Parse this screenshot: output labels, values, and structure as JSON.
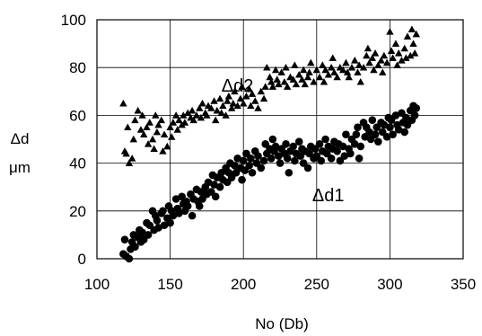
{
  "chart_data": {
    "type": "scatter",
    "title": "",
    "xlabel": "No (Db)",
    "ylabel_line1": "Δd",
    "ylabel_line2": "μm",
    "xlim": [
      100,
      350
    ],
    "ylim": [
      0,
      100
    ],
    "xticks": [
      "100",
      "150",
      "200",
      "250",
      "300",
      "350"
    ],
    "yticks": [
      "0",
      "20",
      "40",
      "60",
      "80",
      "100"
    ],
    "xtick_values": [
      100,
      150,
      200,
      250,
      300,
      350
    ],
    "ytick_values": [
      0,
      20,
      40,
      60,
      80,
      100
    ],
    "grid": true,
    "series_labels": [
      {
        "text": "Δd2",
        "x": 185,
        "y": 70
      },
      {
        "text": "Δd1",
        "x": 247,
        "y": 24
      }
    ],
    "series": [
      {
        "marker": "triangle",
        "color": "#000000",
        "points": [
          [
            118,
            65
          ],
          [
            119,
            45
          ],
          [
            120,
            44
          ],
          [
            121,
            55
          ],
          [
            122,
            40
          ],
          [
            124,
            42
          ],
          [
            125,
            50
          ],
          [
            126,
            58
          ],
          [
            128,
            62
          ],
          [
            130,
            54
          ],
          [
            131,
            60
          ],
          [
            132,
            52
          ],
          [
            134,
            55
          ],
          [
            135,
            48
          ],
          [
            136,
            57
          ],
          [
            138,
            50
          ],
          [
            139,
            46
          ],
          [
            140,
            60
          ],
          [
            141,
            53
          ],
          [
            142,
            56
          ],
          [
            144,
            58
          ],
          [
            145,
            45
          ],
          [
            146,
            52
          ],
          [
            148,
            47
          ],
          [
            150,
            55
          ],
          [
            151,
            51
          ],
          [
            152,
            57
          ],
          [
            154,
            60
          ],
          [
            155,
            54
          ],
          [
            156,
            58
          ],
          [
            158,
            56
          ],
          [
            159,
            60
          ],
          [
            160,
            57
          ],
          [
            162,
            61
          ],
          [
            164,
            59
          ],
          [
            165,
            62
          ],
          [
            166,
            58
          ],
          [
            168,
            60
          ],
          [
            170,
            63
          ],
          [
            171,
            59
          ],
          [
            172,
            65
          ],
          [
            174,
            61
          ],
          [
            175,
            60
          ],
          [
            176,
            64
          ],
          [
            178,
            63
          ],
          [
            180,
            66
          ],
          [
            181,
            58
          ],
          [
            182,
            62
          ],
          [
            184,
            67
          ],
          [
            185,
            61
          ],
          [
            186,
            64
          ],
          [
            188,
            60
          ],
          [
            189,
            66
          ],
          [
            190,
            68
          ],
          [
            192,
            63
          ],
          [
            193,
            65
          ],
          [
            194,
            70
          ],
          [
            196,
            64
          ],
          [
            198,
            67
          ],
          [
            199,
            72
          ],
          [
            200,
            65
          ],
          [
            202,
            68
          ],
          [
            204,
            71
          ],
          [
            205,
            64
          ],
          [
            206,
            69
          ],
          [
            208,
            66
          ],
          [
            210,
            63
          ],
          [
            212,
            70
          ],
          [
            214,
            67
          ],
          [
            215,
            72
          ],
          [
            216,
            80
          ],
          [
            218,
            76
          ],
          [
            219,
            74
          ],
          [
            220,
            72
          ],
          [
            222,
            79
          ],
          [
            223,
            75
          ],
          [
            224,
            73
          ],
          [
            226,
            78
          ],
          [
            228,
            74
          ],
          [
            229,
            80
          ],
          [
            230,
            72
          ],
          [
            232,
            76
          ],
          [
            234,
            75
          ],
          [
            235,
            81
          ],
          [
            236,
            73
          ],
          [
            238,
            77
          ],
          [
            240,
            75
          ],
          [
            241,
            79
          ],
          [
            242,
            73
          ],
          [
            244,
            76
          ],
          [
            245,
            78
          ],
          [
            246,
            82
          ],
          [
            248,
            74
          ],
          [
            250,
            79
          ],
          [
            252,
            76
          ],
          [
            254,
            81
          ],
          [
            255,
            74
          ],
          [
            256,
            79
          ],
          [
            258,
            77
          ],
          [
            260,
            80
          ],
          [
            261,
            84
          ],
          [
            262,
            78
          ],
          [
            264,
            76
          ],
          [
            266,
            80
          ],
          [
            268,
            79
          ],
          [
            270,
            82
          ],
          [
            271,
            78
          ],
          [
            272,
            76
          ],
          [
            274,
            80
          ],
          [
            276,
            83
          ],
          [
            278,
            78
          ],
          [
            279,
            81
          ],
          [
            280,
            74
          ],
          [
            282,
            80
          ],
          [
            284,
            85
          ],
          [
            285,
            88
          ],
          [
            286,
            82
          ],
          [
            288,
            84
          ],
          [
            289,
            79
          ],
          [
            290,
            86
          ],
          [
            292,
            81
          ],
          [
            294,
            83
          ],
          [
            295,
            78
          ],
          [
            296,
            85
          ],
          [
            298,
            82
          ],
          [
            300,
            95
          ],
          [
            301,
            87
          ],
          [
            302,
            84
          ],
          [
            304,
            90
          ],
          [
            305,
            81
          ],
          [
            306,
            86
          ],
          [
            308,
            83
          ],
          [
            310,
            88
          ],
          [
            311,
            84
          ],
          [
            312,
            93
          ],
          [
            314,
            85
          ],
          [
            315,
            96
          ],
          [
            316,
            90
          ],
          [
            317,
            86
          ],
          [
            318,
            94
          ]
        ]
      },
      {
        "marker": "circle",
        "color": "#000000",
        "points": [
          [
            118,
            2
          ],
          [
            119,
            8
          ],
          [
            120,
            1
          ],
          [
            122,
            0
          ],
          [
            123,
            4
          ],
          [
            124,
            7
          ],
          [
            125,
            10
          ],
          [
            126,
            5
          ],
          [
            128,
            9
          ],
          [
            129,
            12
          ],
          [
            130,
            7
          ],
          [
            131,
            11
          ],
          [
            132,
            8
          ],
          [
            134,
            15
          ],
          [
            135,
            10
          ],
          [
            136,
            14
          ],
          [
            138,
            20
          ],
          [
            139,
            12
          ],
          [
            140,
            18
          ],
          [
            141,
            16
          ],
          [
            142,
            13
          ],
          [
            144,
            19
          ],
          [
            145,
            20
          ],
          [
            146,
            14
          ],
          [
            148,
            17
          ],
          [
            149,
            22
          ],
          [
            150,
            15
          ],
          [
            151,
            20
          ],
          [
            152,
            18
          ],
          [
            154,
            25
          ],
          [
            155,
            21
          ],
          [
            156,
            19
          ],
          [
            158,
            26
          ],
          [
            159,
            23
          ],
          [
            160,
            20
          ],
          [
            161,
            24
          ],
          [
            162,
            22
          ],
          [
            164,
            27
          ],
          [
            165,
            18
          ],
          [
            166,
            25
          ],
          [
            168,
            29
          ],
          [
            169,
            24
          ],
          [
            170,
            22
          ],
          [
            171,
            28
          ],
          [
            172,
            25
          ],
          [
            174,
            30
          ],
          [
            175,
            27
          ],
          [
            176,
            32
          ],
          [
            178,
            28
          ],
          [
            179,
            35
          ],
          [
            180,
            31
          ],
          [
            181,
            26
          ],
          [
            182,
            34
          ],
          [
            184,
            30
          ],
          [
            185,
            36
          ],
          [
            186,
            33
          ],
          [
            188,
            38
          ],
          [
            189,
            32
          ],
          [
            190,
            36
          ],
          [
            191,
            40
          ],
          [
            192,
            34
          ],
          [
            194,
            39
          ],
          [
            195,
            36
          ],
          [
            196,
            42
          ],
          [
            198,
            38
          ],
          [
            199,
            33
          ],
          [
            200,
            41
          ],
          [
            201,
            37
          ],
          [
            202,
            44
          ],
          [
            204,
            39
          ],
          [
            205,
            42
          ],
          [
            206,
            36
          ],
          [
            208,
            45
          ],
          [
            209,
            40
          ],
          [
            210,
            43
          ],
          [
            212,
            38
          ],
          [
            214,
            41
          ],
          [
            215,
            48
          ],
          [
            216,
            44
          ],
          [
            218,
            46
          ],
          [
            219,
            42
          ],
          [
            220,
            50
          ],
          [
            221,
            45
          ],
          [
            222,
            47
          ],
          [
            224,
            43
          ],
          [
            225,
            40
          ],
          [
            226,
            46
          ],
          [
            228,
            44
          ],
          [
            229,
            48
          ],
          [
            230,
            42
          ],
          [
            231,
            36
          ],
          [
            232,
            45
          ],
          [
            234,
            47
          ],
          [
            235,
            41
          ],
          [
            236,
            44
          ],
          [
            238,
            49
          ],
          [
            239,
            43
          ],
          [
            240,
            46
          ],
          [
            241,
            40
          ],
          [
            242,
            45
          ],
          [
            244,
            38
          ],
          [
            245,
            44
          ],
          [
            246,
            47
          ],
          [
            248,
            42
          ],
          [
            249,
            46
          ],
          [
            250,
            43
          ],
          [
            252,
            48
          ],
          [
            253,
            41
          ],
          [
            254,
            45
          ],
          [
            256,
            50
          ],
          [
            257,
            44
          ],
          [
            258,
            47
          ],
          [
            260,
            42
          ],
          [
            261,
            46
          ],
          [
            262,
            49
          ],
          [
            264,
            45
          ],
          [
            265,
            48
          ],
          [
            266,
            41
          ],
          [
            268,
            47
          ],
          [
            269,
            43
          ],
          [
            270,
            52
          ],
          [
            272,
            46
          ],
          [
            273,
            44
          ],
          [
            274,
            50
          ],
          [
            276,
            48
          ],
          [
            277,
            52
          ],
          [
            278,
            55
          ],
          [
            279,
            42
          ],
          [
            280,
            47
          ],
          [
            282,
            57
          ],
          [
            283,
            51
          ],
          [
            284,
            55
          ],
          [
            286,
            53
          ],
          [
            287,
            50
          ],
          [
            288,
            58
          ],
          [
            290,
            52
          ],
          [
            291,
            55
          ],
          [
            292,
            49
          ],
          [
            294,
            57
          ],
          [
            295,
            53
          ],
          [
            296,
            56
          ],
          [
            298,
            51
          ],
          [
            299,
            59
          ],
          [
            300,
            55
          ],
          [
            301,
            58
          ],
          [
            302,
            52
          ],
          [
            304,
            60
          ],
          [
            305,
            56
          ],
          [
            306,
            54
          ],
          [
            308,
            61
          ],
          [
            309,
            57
          ],
          [
            310,
            53
          ],
          [
            311,
            59
          ],
          [
            312,
            56
          ],
          [
            314,
            62
          ],
          [
            315,
            58
          ],
          [
            316,
            64
          ],
          [
            317,
            60
          ],
          [
            318,
            63
          ]
        ]
      }
    ]
  }
}
